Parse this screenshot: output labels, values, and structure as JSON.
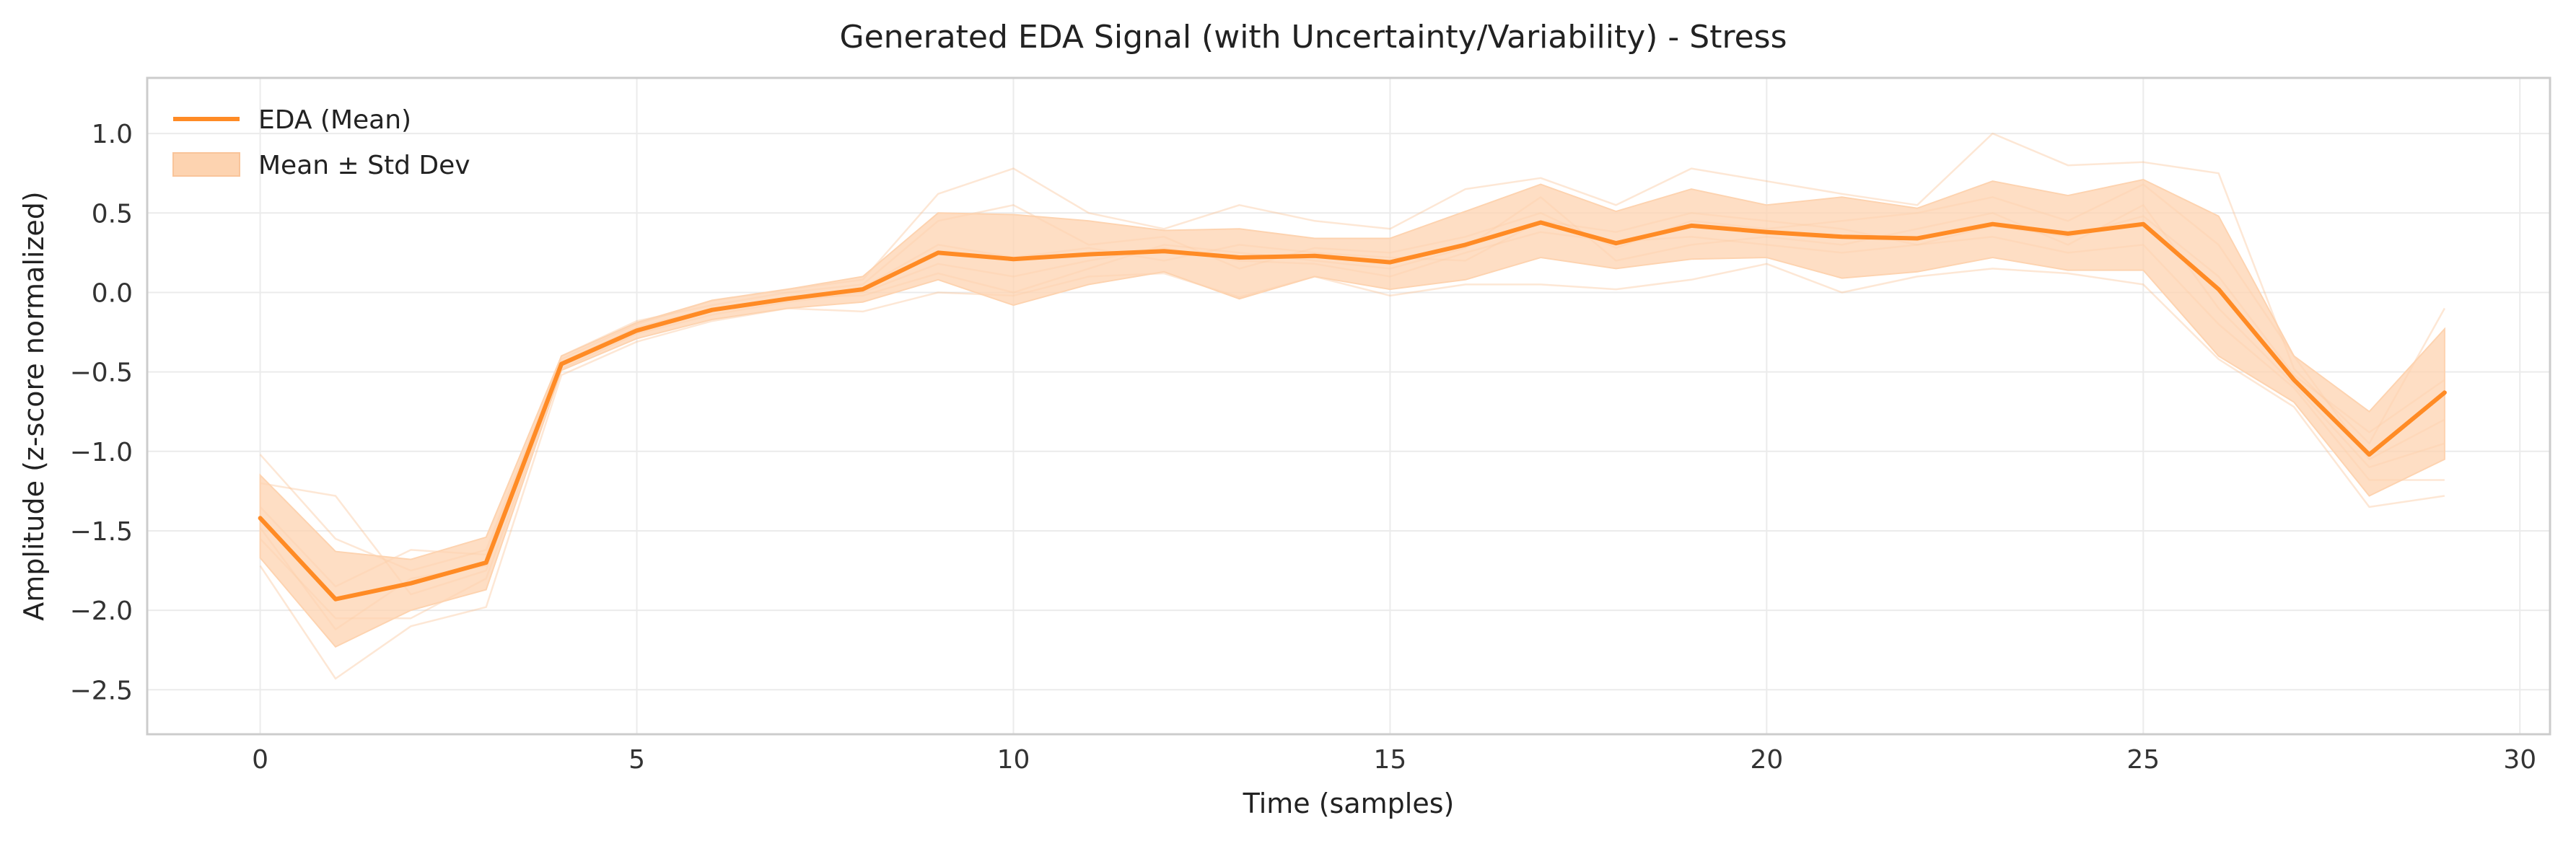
{
  "chart_data": {
    "type": "line",
    "title": "Generated EDA Signal (with Uncertainty/Variability) - Stress",
    "xlabel": "Time (samples)",
    "ylabel": "Amplitude (z-score normalized)",
    "xlim": [
      -1.5,
      30.4
    ],
    "ylim": [
      -2.78,
      1.35
    ],
    "xticks": [
      0,
      5,
      10,
      15,
      20,
      25,
      30
    ],
    "yticks": [
      1.0,
      0.5,
      0.0,
      -0.5,
      -1.0,
      -1.5,
      -2.0,
      -2.5
    ],
    "ytick_labels": [
      "1.0",
      "0.5",
      "0.0",
      "−0.5",
      "−1.0",
      "−1.5",
      "−2.0",
      "−2.5"
    ],
    "grid": true,
    "legend_position": "top-left",
    "colors": {
      "mean": "#ff8b25",
      "band": "#fdd3b0",
      "samples": "#f9b988"
    },
    "x": [
      0,
      1,
      2,
      3,
      4,
      5,
      6,
      7,
      8,
      9,
      10,
      11,
      12,
      13,
      14,
      15,
      16,
      17,
      18,
      19,
      20,
      21,
      22,
      23,
      24,
      25,
      26,
      27,
      28,
      29
    ],
    "series": [
      {
        "name": "EDA (Mean)",
        "role": "mean",
        "values": [
          -1.42,
          -1.93,
          -1.83,
          -1.7,
          -0.45,
          -0.24,
          -0.11,
          -0.04,
          0.02,
          0.25,
          0.21,
          0.24,
          0.26,
          0.22,
          0.23,
          0.19,
          0.3,
          0.44,
          0.31,
          0.42,
          0.38,
          0.35,
          0.34,
          0.43,
          0.37,
          0.43,
          0.02,
          -0.55,
          -1.02,
          -0.63
        ]
      },
      {
        "name": "Mean ± Std Dev",
        "role": "band",
        "upper": [
          -1.15,
          -1.63,
          -1.68,
          -1.54,
          -0.4,
          -0.19,
          -0.05,
          0.02,
          0.1,
          0.5,
          0.49,
          0.45,
          0.39,
          0.4,
          0.34,
          0.34,
          0.51,
          0.68,
          0.51,
          0.65,
          0.55,
          0.6,
          0.53,
          0.7,
          0.61,
          0.71,
          0.48,
          -0.4,
          -0.75,
          -0.23
        ],
        "lower": [
          -1.67,
          -2.23,
          -2.0,
          -1.87,
          -0.49,
          -0.29,
          -0.17,
          -0.1,
          -0.06,
          0.08,
          -0.08,
          0.05,
          0.13,
          -0.04,
          0.1,
          0.02,
          0.08,
          0.22,
          0.15,
          0.21,
          0.22,
          0.09,
          0.13,
          0.22,
          0.14,
          0.14,
          -0.4,
          -0.69,
          -1.28,
          -1.05
        ]
      }
    ],
    "sample_realizations": [
      [
        -1.02,
        -1.55,
        -1.75,
        -1.62,
        -0.42,
        -0.2,
        -0.05,
        0.02,
        0.08,
        0.62,
        0.78,
        0.5,
        0.4,
        0.55,
        0.45,
        0.4,
        0.65,
        0.72,
        0.55,
        0.78,
        0.7,
        0.62,
        0.55,
        1.0,
        0.8,
        0.82,
        0.75,
        -0.48,
        -0.95,
        -0.1
      ],
      [
        -1.72,
        -2.43,
        -2.1,
        -1.98,
        -0.52,
        -0.31,
        -0.18,
        -0.1,
        -0.12,
        0.0,
        -0.02,
        0.1,
        0.12,
        -0.03,
        0.1,
        -0.02,
        0.05,
        0.05,
        0.02,
        0.08,
        0.18,
        0.0,
        0.1,
        0.15,
        0.12,
        0.05,
        -0.42,
        -0.72,
        -1.35,
        -1.28
      ],
      [
        -1.2,
        -1.28,
        -1.9,
        -1.75,
        -0.4,
        -0.18,
        -0.08,
        0.0,
        0.05,
        0.45,
        0.55,
        0.3,
        0.35,
        0.15,
        0.28,
        0.25,
        0.35,
        0.5,
        0.28,
        0.45,
        0.4,
        0.45,
        0.5,
        0.6,
        0.45,
        0.68,
        0.3,
        -0.4,
        -1.05,
        -0.8
      ],
      [
        -1.55,
        -2.05,
        -2.05,
        -1.8,
        -0.48,
        -0.26,
        -0.14,
        -0.06,
        0.0,
        0.18,
        0.1,
        0.2,
        0.28,
        0.2,
        0.18,
        0.1,
        0.25,
        0.38,
        0.32,
        0.35,
        0.3,
        0.25,
        0.3,
        0.35,
        0.25,
        0.3,
        -0.2,
        -0.6,
        -1.18,
        -1.18
      ],
      [
        -1.35,
        -1.85,
        -1.62,
        -1.65,
        -0.44,
        -0.22,
        -0.1,
        -0.05,
        0.03,
        0.3,
        0.22,
        0.28,
        0.2,
        0.3,
        0.25,
        0.22,
        0.2,
        0.45,
        0.38,
        0.5,
        0.45,
        0.4,
        0.3,
        0.42,
        0.35,
        0.48,
        0.1,
        -0.52,
        -0.88,
        -0.55
      ],
      [
        -1.48,
        -2.12,
        -1.8,
        -1.72,
        -0.46,
        -0.25,
        -0.12,
        -0.03,
        -0.02,
        0.12,
        0.0,
        0.15,
        0.3,
        0.25,
        0.2,
        0.15,
        0.28,
        0.6,
        0.2,
        0.3,
        0.35,
        0.3,
        0.4,
        0.5,
        0.3,
        0.55,
        -0.1,
        -0.58,
        -1.1,
        -0.95
      ]
    ]
  }
}
